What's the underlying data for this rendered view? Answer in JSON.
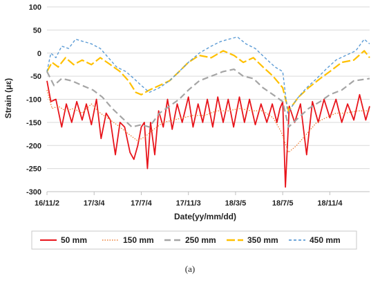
{
  "caption": "(a)",
  "chart_data": {
    "type": "line",
    "title": "",
    "xlabel": "Date(yy/mm/dd)",
    "ylabel": "Strain (με)",
    "ylim": [
      -300,
      100
    ],
    "yticks": [
      100,
      50,
      0,
      -50,
      -100,
      -150,
      -200,
      -250,
      -300
    ],
    "xlim": [
      "2016-11-02",
      "2019-02-15"
    ],
    "xticks": [
      {
        "date": "2016-11-02",
        "label": "16/11/2"
      },
      {
        "date": "2017-03-04",
        "label": "17/3/4"
      },
      {
        "date": "2017-07-04",
        "label": "17/7/4"
      },
      {
        "date": "2017-11-03",
        "label": "17/11/3"
      },
      {
        "date": "2018-03-05",
        "label": "18/3/5"
      },
      {
        "date": "2018-07-05",
        "label": "18/7/5"
      },
      {
        "date": "2018-11-04",
        "label": "18/11/4"
      }
    ],
    "grid": "horizontal",
    "legend_position": "bottom",
    "series": [
      {
        "name": "50 mm",
        "color": "#e8141b",
        "dash": "solid",
        "x": [
          "2016-11-02",
          "2016-11-12",
          "2016-11-25",
          "2016-12-10",
          "2016-12-22",
          "2017-01-05",
          "2017-01-18",
          "2017-02-01",
          "2017-02-12",
          "2017-02-25",
          "2017-03-10",
          "2017-03-22",
          "2017-04-04",
          "2017-04-15",
          "2017-04-28",
          "2017-05-10",
          "2017-05-22",
          "2017-06-05",
          "2017-06-15",
          "2017-06-25",
          "2017-07-04",
          "2017-07-12",
          "2017-07-20",
          "2017-07-28",
          "2017-08-08",
          "2017-08-18",
          "2017-08-30",
          "2017-09-10",
          "2017-09-22",
          "2017-10-05",
          "2017-10-18",
          "2017-11-03",
          "2017-11-15",
          "2017-11-28",
          "2017-12-10",
          "2017-12-22",
          "2018-01-05",
          "2018-01-18",
          "2018-02-01",
          "2018-02-14",
          "2018-02-28",
          "2018-03-15",
          "2018-03-28",
          "2018-04-10",
          "2018-04-25",
          "2018-05-10",
          "2018-05-25",
          "2018-06-08",
          "2018-06-20",
          "2018-06-28",
          "2018-07-05",
          "2018-07-12",
          "2018-07-22",
          "2018-08-05",
          "2018-08-20",
          "2018-09-05",
          "2018-09-20",
          "2018-10-05",
          "2018-10-20",
          "2018-11-04",
          "2018-11-20",
          "2018-12-05",
          "2018-12-20",
          "2019-01-05",
          "2019-01-20",
          "2019-02-05",
          "2019-02-15"
        ],
        "y": [
          -60,
          -105,
          -100,
          -160,
          -110,
          -150,
          -105,
          -145,
          -110,
          -155,
          -100,
          -185,
          -130,
          -145,
          -220,
          -150,
          -160,
          -215,
          -230,
          -200,
          -160,
          -150,
          -250,
          -150,
          -220,
          -125,
          -160,
          -100,
          -165,
          -110,
          -150,
          -95,
          -160,
          -110,
          -150,
          -100,
          -160,
          -95,
          -150,
          -100,
          -160,
          -95,
          -150,
          -100,
          -155,
          -110,
          -150,
          -110,
          -150,
          -120,
          -105,
          -290,
          -115,
          -150,
          -110,
          -220,
          -105,
          -150,
          -100,
          -140,
          -100,
          -150,
          -110,
          -145,
          -90,
          -145,
          -115
        ]
      },
      {
        "name": "150 mm",
        "color": "#ed7d31",
        "dash": "dotted",
        "x": [
          "2016-11-02",
          "2016-11-15",
          "2016-12-01",
          "2016-12-20",
          "2017-01-10",
          "2017-02-01",
          "2017-02-25",
          "2017-03-20",
          "2017-04-15",
          "2017-05-10",
          "2017-06-01",
          "2017-06-25",
          "2017-07-15",
          "2017-08-05",
          "2017-08-30",
          "2017-09-25",
          "2017-10-20",
          "2017-11-15",
          "2017-12-15",
          "2018-01-15",
          "2018-02-15",
          "2018-03-15",
          "2018-04-15",
          "2018-05-15",
          "2018-06-10",
          "2018-07-01",
          "2018-07-20",
          "2018-08-10",
          "2018-09-05",
          "2018-10-01",
          "2018-10-25",
          "2018-11-20",
          "2018-12-15",
          "2019-01-15",
          "2019-02-15"
        ],
        "y": [
          -80,
          -120,
          -115,
          -125,
          -120,
          -130,
          -110,
          -130,
          -145,
          -160,
          -175,
          -190,
          -180,
          -165,
          -150,
          -145,
          -140,
          -135,
          -135,
          -125,
          -125,
          -120,
          -125,
          -125,
          -140,
          -170,
          -215,
          -200,
          -175,
          -150,
          -140,
          -130,
          -130,
          -125,
          -125
        ]
      },
      {
        "name": "250 mm",
        "color": "#a5a5a5",
        "dash": "dashed",
        "x": [
          "2016-11-02",
          "2016-11-20",
          "2016-12-10",
          "2017-01-05",
          "2017-02-01",
          "2017-03-01",
          "2017-03-25",
          "2017-04-20",
          "2017-05-15",
          "2017-06-10",
          "2017-07-04",
          "2017-07-25",
          "2017-08-20",
          "2017-09-15",
          "2017-10-10",
          "2017-11-03",
          "2017-12-01",
          "2018-01-01",
          "2018-02-01",
          "2018-03-01",
          "2018-03-25",
          "2018-04-20",
          "2018-05-15",
          "2018-06-10",
          "2018-07-05",
          "2018-07-20",
          "2018-08-15",
          "2018-09-10",
          "2018-10-10",
          "2018-11-04",
          "2018-12-05",
          "2019-01-05",
          "2019-02-15"
        ],
        "y": [
          -40,
          -70,
          -55,
          -60,
          -70,
          -80,
          -95,
          -120,
          -140,
          -160,
          -155,
          -160,
          -130,
          -115,
          -100,
          -80,
          -60,
          -50,
          -40,
          -35,
          -50,
          -55,
          -75,
          -90,
          -105,
          -160,
          -140,
          -120,
          -105,
          -90,
          -80,
          -60,
          -55
        ]
      },
      {
        "name": "350 mm",
        "color": "#ffc000",
        "dash": "longdash",
        "x": [
          "2016-11-02",
          "2016-11-15",
          "2016-12-01",
          "2016-12-20",
          "2017-01-10",
          "2017-02-01",
          "2017-02-25",
          "2017-03-20",
          "2017-04-15",
          "2017-05-10",
          "2017-06-01",
          "2017-06-20",
          "2017-07-04",
          "2017-07-25",
          "2017-08-20",
          "2017-09-15",
          "2017-10-10",
          "2017-11-03",
          "2017-12-01",
          "2018-01-01",
          "2018-02-01",
          "2018-03-01",
          "2018-03-25",
          "2018-04-20",
          "2018-05-15",
          "2018-06-10",
          "2018-07-05",
          "2018-07-20",
          "2018-08-15",
          "2018-09-10",
          "2018-10-10",
          "2018-11-04",
          "2018-12-05",
          "2019-01-05",
          "2019-02-01",
          "2019-02-15"
        ],
        "y": [
          -40,
          -20,
          -30,
          -10,
          -25,
          -15,
          -25,
          -10,
          -25,
          -40,
          -60,
          -85,
          -90,
          -80,
          -70,
          -60,
          -40,
          -20,
          -5,
          -10,
          5,
          -5,
          -20,
          -10,
          -30,
          -50,
          -75,
          -125,
          -95,
          -75,
          -55,
          -40,
          -20,
          -15,
          5,
          -10
        ]
      },
      {
        "name": "450 mm",
        "color": "#5b9bd5",
        "dash": "shortdash",
        "x": [
          "2016-11-02",
          "2016-11-12",
          "2016-11-25",
          "2016-12-10",
          "2016-12-28",
          "2017-01-15",
          "2017-02-05",
          "2017-02-25",
          "2017-03-20",
          "2017-04-10",
          "2017-05-01",
          "2017-05-25",
          "2017-06-15",
          "2017-07-04",
          "2017-07-25",
          "2017-08-20",
          "2017-09-15",
          "2017-10-10",
          "2017-11-03",
          "2017-12-01",
          "2018-01-01",
          "2018-01-25",
          "2018-02-15",
          "2018-03-10",
          "2018-04-01",
          "2018-04-25",
          "2018-05-20",
          "2018-06-15",
          "2018-07-05",
          "2018-07-18",
          "2018-08-10",
          "2018-09-05",
          "2018-10-01",
          "2018-10-25",
          "2018-11-20",
          "2018-12-15",
          "2019-01-10",
          "2019-02-01",
          "2019-02-15"
        ],
        "y": [
          -40,
          0,
          -10,
          15,
          10,
          30,
          25,
          20,
          10,
          -10,
          -30,
          -40,
          -55,
          -70,
          -85,
          -75,
          -60,
          -40,
          -20,
          0,
          15,
          25,
          30,
          35,
          20,
          10,
          -10,
          -30,
          -40,
          -130,
          -100,
          -75,
          -55,
          -35,
          -15,
          -5,
          5,
          30,
          20
        ]
      }
    ]
  }
}
